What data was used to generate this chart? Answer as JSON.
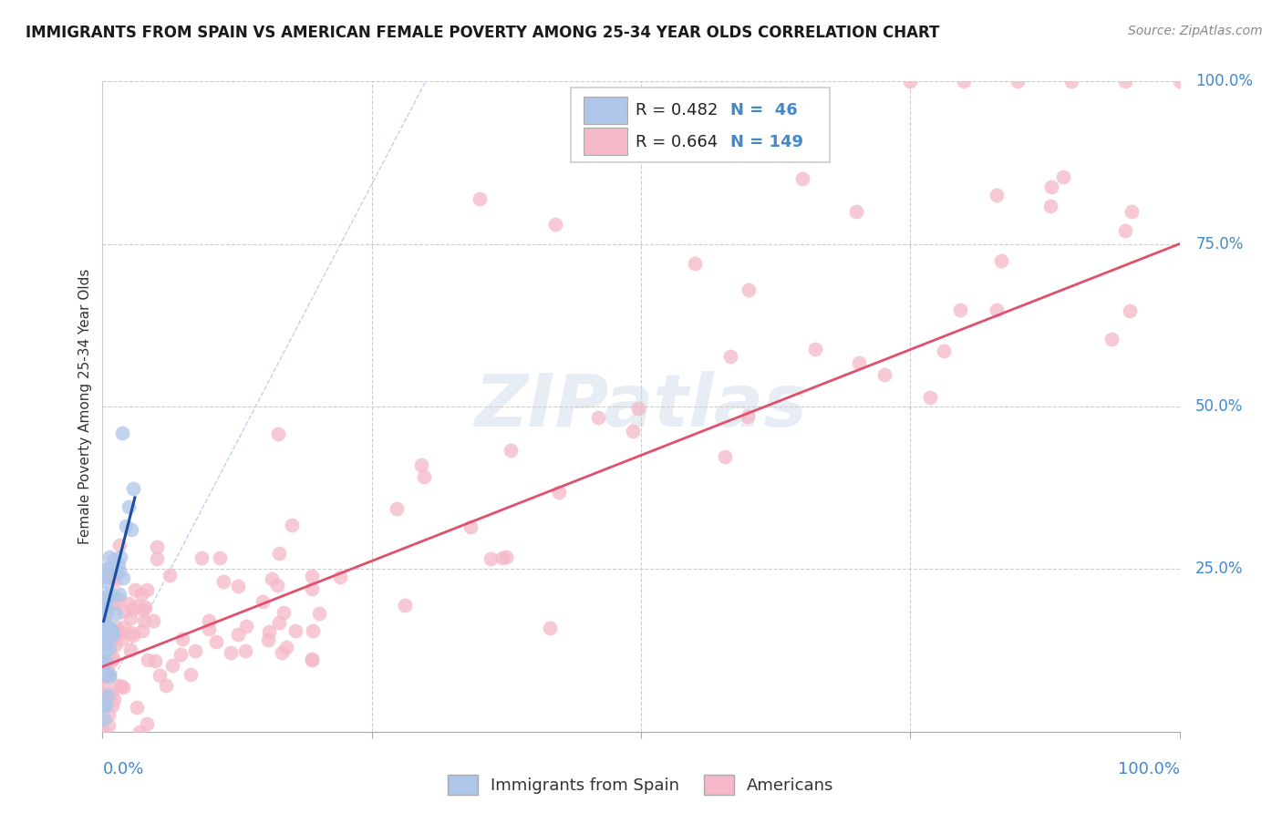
{
  "title": "IMMIGRANTS FROM SPAIN VS AMERICAN FEMALE POVERTY AMONG 25-34 YEAR OLDS CORRELATION CHART",
  "source": "Source: ZipAtlas.com",
  "ylabel": "Female Poverty Among 25-34 Year Olds",
  "legend_blue_r": "R = 0.482",
  "legend_blue_n": "N =  46",
  "legend_pink_r": "R = 0.664",
  "legend_pink_n": "N = 149",
  "legend_label_blue": "Immigrants from Spain",
  "legend_label_pink": "Americans",
  "blue_color": "#aec6e8",
  "blue_edge_color": "#aec6e8",
  "pink_color": "#f5b8c8",
  "pink_edge_color": "#f5b8c8",
  "blue_line_color": "#1a4fa0",
  "pink_line_color": "#e0506a",
  "dash_line_color": "#b0c8e8",
  "title_color": "#1a1a1a",
  "axis_label_color": "#4488cc",
  "grid_color": "#cccccc",
  "watermark_color": "#c8d8e8",
  "r_label_color": "#222222",
  "n_label_color": "#4488cc"
}
